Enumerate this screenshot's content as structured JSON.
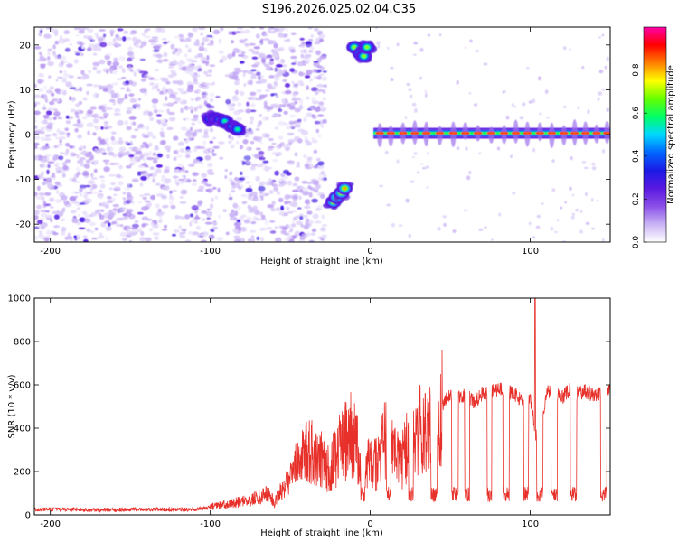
{
  "title": "S196.2026.025.02.04.C35",
  "chart_data": [
    {
      "type": "heatmap",
      "xlabel": "Height of straight line (km)",
      "ylabel": "Frequency (Hz)",
      "xlim": [
        -210,
        150
      ],
      "ylim": [
        -24,
        24
      ],
      "xticks": [
        -200,
        -100,
        0,
        100
      ],
      "yticks": [
        -20,
        -10,
        0,
        10,
        20
      ],
      "colorbar": {
        "label": "Normalized spectral amplitude",
        "range": [
          0,
          1
        ],
        "ticks": [
          0.0,
          0.2,
          0.4,
          0.6,
          0.8
        ],
        "colors": [
          "#ffffff",
          "#c9b3f5",
          "#8a4fe8",
          "#5a19e0",
          "#1a1ae6",
          "#0066ff",
          "#00d8ff",
          "#00ff66",
          "#66ff00",
          "#ffff00",
          "#ff8000",
          "#ff0000",
          "#ff00aa"
        ]
      },
      "features": [
        {
          "name": "background-noise",
          "x_range": [
            -210,
            -28
          ],
          "f_range": [
            -24,
            24
          ],
          "amplitude": 0.1
        },
        {
          "name": "no-data-gap",
          "x_range": [
            -27,
            -10
          ],
          "f_range": [
            -24,
            24
          ],
          "amplitude": 0
        },
        {
          "name": "blob-cluster-center",
          "points": [
            [
              -100,
              3.5
            ],
            [
              -97,
              3.6
            ],
            [
              -94,
              3.3
            ],
            [
              -91,
              3.0
            ],
            [
              -86,
              1.8
            ],
            [
              -83,
              1.2
            ]
          ],
          "amplitude": 0.45
        },
        {
          "name": "lower-streak",
          "points": [
            [
              -23,
              -15
            ],
            [
              -21,
              -14
            ],
            [
              -18,
              -13
            ],
            [
              -16,
              -12
            ]
          ],
          "amplitude": 0.65
        },
        {
          "name": "upper-streak",
          "points": [
            [
              -10,
              19.5
            ],
            [
              -6,
              18
            ],
            [
              -4,
              17.5
            ],
            [
              -2,
              19.5
            ]
          ],
          "amplitude": 0.55
        },
        {
          "name": "carrier-line",
          "x_range": [
            2,
            150
          ],
          "frequency": 0.3,
          "amplitude": 0.9
        }
      ]
    },
    {
      "type": "line",
      "xlabel": "Height of straight line (km)",
      "ylabel": "SNR (10 * v/v)",
      "xlim": [
        -210,
        150
      ],
      "ylim": [
        0,
        1000
      ],
      "xticks": [
        -200,
        -100,
        0,
        100
      ],
      "yticks": [
        0,
        200,
        400,
        600,
        800,
        1000
      ],
      "series": [
        {
          "name": "SNR",
          "color": "#e8302a",
          "x": [
            -210,
            -190,
            -170,
            -150,
            -130,
            -110,
            -100,
            -90,
            -80,
            -75,
            -70,
            -65,
            -60,
            -55,
            -50,
            -45,
            -40,
            -35,
            -30,
            -25,
            -20,
            -15,
            -10,
            -5,
            0,
            5,
            10,
            15,
            20,
            25,
            30,
            35,
            40,
            45,
            50,
            55,
            60,
            65,
            70,
            75,
            80,
            85,
            90,
            95,
            100,
            105,
            110,
            115,
            120,
            125,
            130,
            135,
            140,
            145,
            150
          ],
          "values": [
            25,
            25,
            22,
            25,
            25,
            25,
            35,
            50,
            60,
            70,
            80,
            100,
            60,
            120,
            180,
            260,
            300,
            280,
            250,
            220,
            290,
            350,
            380,
            180,
            250,
            230,
            380,
            300,
            250,
            350,
            380,
            420,
            460,
            500,
            560,
            540,
            550,
            520,
            560,
            570,
            580,
            570,
            560,
            520,
            540,
            300,
            570,
            560,
            540,
            580,
            560,
            570,
            550,
            560,
            580
          ]
        }
      ],
      "dips": [
        [
          -6,
          -3
        ],
        [
          10,
          13
        ],
        [
          24,
          27
        ],
        [
          38,
          42
        ],
        [
          51,
          55
        ],
        [
          59,
          62
        ],
        [
          73,
          76
        ],
        [
          83,
          87
        ],
        [
          96,
          99
        ],
        [
          104,
          108
        ],
        [
          113,
          117
        ],
        [
          125,
          129
        ],
        [
          144,
          148
        ]
      ],
      "spike": {
        "x": 103,
        "value": 1000
      }
    }
  ]
}
